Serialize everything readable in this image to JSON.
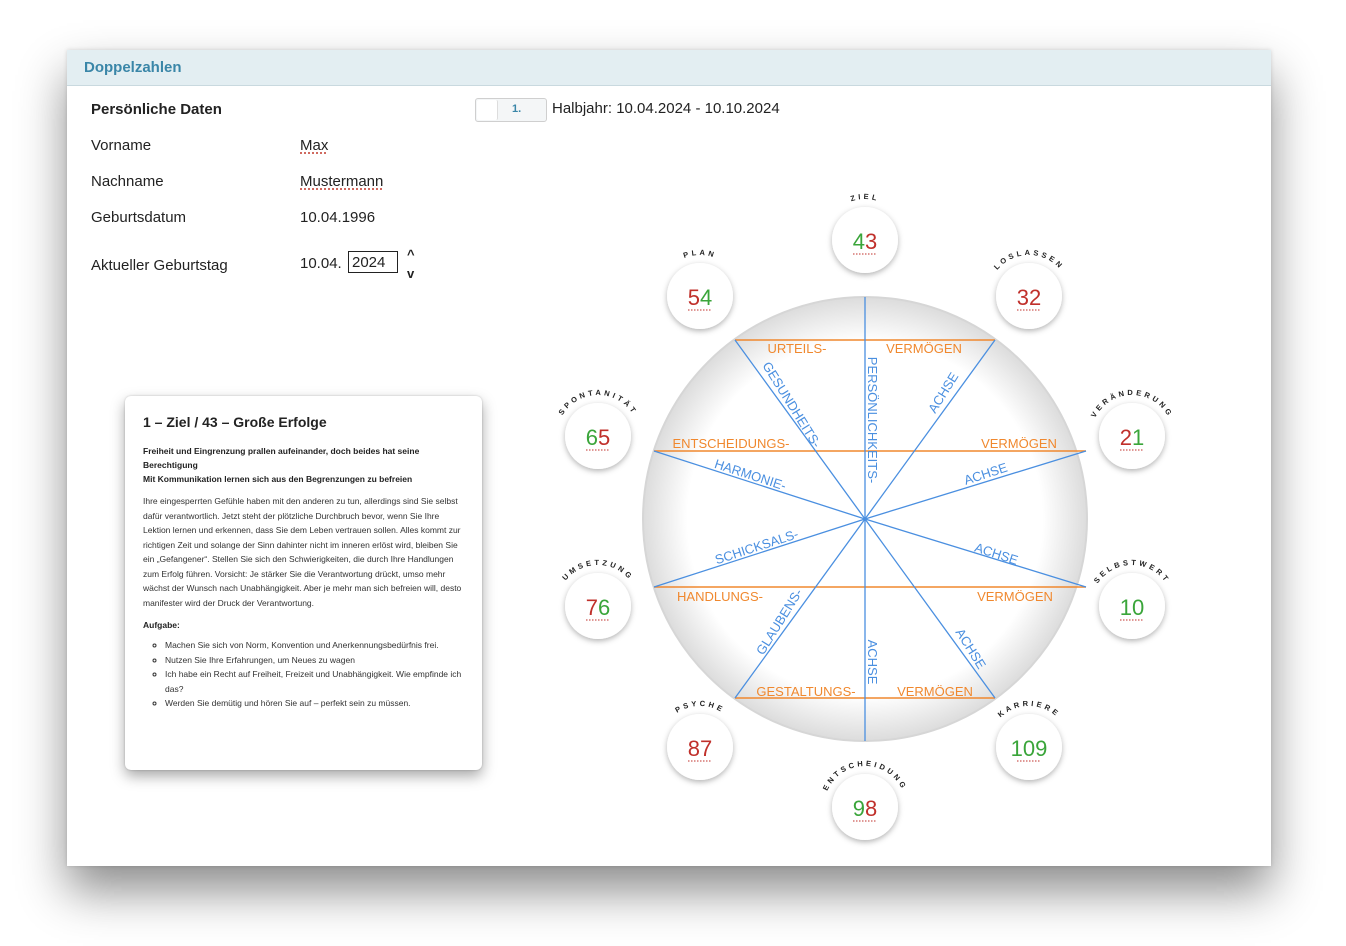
{
  "window": {
    "title": "Doppelzahlen"
  },
  "personal": {
    "heading": "Persönliche Daten",
    "first_name_label": "Vorname",
    "first_name": "Max",
    "last_name_label": "Nachname",
    "last_name": "Mustermann",
    "birthdate_label": "Geburtsdatum",
    "birthdate": "10.04.1996",
    "current_birthday_label": "Aktueller Geburtstag",
    "current_birthday_prefix": "10.04.",
    "current_year": "2024",
    "spin_up": "^",
    "spin_down": "v"
  },
  "period": {
    "toggle_label": "1.",
    "text": "Halbjahr: 10.04.2024 - 10.10.2024"
  },
  "card": {
    "title": "1 – Ziel / 43 – Große Erfolge",
    "subtitle_1": "Freiheit und Eingrenzung prallen aufeinander, doch beides hat seine Berechtigung",
    "subtitle_2": "Mit Kommunikation lernen sich aus den Begrenzungen zu befreien",
    "body": "Ihre eingesperrten Gefühle haben mit den anderen zu tun, allerdings sind Sie selbst dafür verantwortlich. Jetzt steht der plötzliche Durchbruch bevor, wenn Sie Ihre Lektion lernen und erkennen, dass Sie dem Leben vertrauen sollen. Alles kommt zur richtigen Zeit und solange der Sinn dahinter nicht im inneren erlöst wird, bleiben Sie ein „Gefangener“. Stellen Sie sich den Schwierigkeiten, die durch Ihre Handlungen zum Erfolg führen. Vorsicht: Je stärker Sie die Verantwortung drückt, umso mehr wächst der Wunsch nach Unabhängigkeit. Aber je mehr man sich befreien will, desto manifester wird der Druck der Verantwortung.",
    "task_label": "Aufgabe:",
    "tasks": [
      "Machen Sie sich von Norm, Konvention und Anerkennungsbedürfnis frei.",
      "Nutzen Sie Ihre Erfahrungen, um Neues zu wagen",
      "Ich habe ein Recht auf Freiheit, Freizeit und Unabhängigkeit. Wie empfinde ich das?",
      "Werden Sie demütig und hören Sie auf – perfekt sein zu müssen."
    ]
  },
  "wheel": {
    "colors": {
      "line_blue": "#4a8fe0",
      "line_orange": "#f0882e",
      "red": "#c0302b",
      "green": "#3aa53a"
    },
    "labels": {
      "urteils": "URTEILS-",
      "vermoegen": "VERMÖGEN",
      "entscheidungs": "ENTSCHEIDUNGS-",
      "handlungs": "HANDLUNGS-",
      "gestaltungs": "GESTALTUNGS-",
      "persoenlichkeits": "PERSÖNLICHKEITS-",
      "gesundheits": "GESUNDHEITS-",
      "harmonie": "HARMONIE-",
      "schicksals": "SCHICKSALS-",
      "glaubens": "GLAUBENS-",
      "achse": "ACHSE"
    },
    "nodes": [
      {
        "name": "ZIEL",
        "d1": "4",
        "c1": "green",
        "d2": "3",
        "c2": "red"
      },
      {
        "name": "LOSLASSEN",
        "d1": "3",
        "c1": "red",
        "d2": "2",
        "c2": "red"
      },
      {
        "name": "VERÄNDERUNG",
        "d1": "2",
        "c1": "red",
        "d2": "1",
        "c2": "green"
      },
      {
        "name": "SELBSTWERT",
        "d1": "1",
        "c1": "green",
        "d2": "0",
        "c2": "green"
      },
      {
        "name": "KARRIERE",
        "d1": "10",
        "c1": "green",
        "d2": "9",
        "c2": "green"
      },
      {
        "name": "ENTSCHEIDUNG",
        "d1": "9",
        "c1": "green",
        "d2": "8",
        "c2": "red"
      },
      {
        "name": "PSYCHE",
        "d1": "8",
        "c1": "red",
        "d2": "7",
        "c2": "red"
      },
      {
        "name": "UMSETZUNG",
        "d1": "7",
        "c1": "red",
        "d2": "6",
        "c2": "green"
      },
      {
        "name": "SPONTANITÄT",
        "d1": "6",
        "c1": "green",
        "d2": "5",
        "c2": "red"
      },
      {
        "name": "PLAN",
        "d1": "5",
        "c1": "red",
        "d2": "4",
        "c2": "green"
      }
    ]
  }
}
